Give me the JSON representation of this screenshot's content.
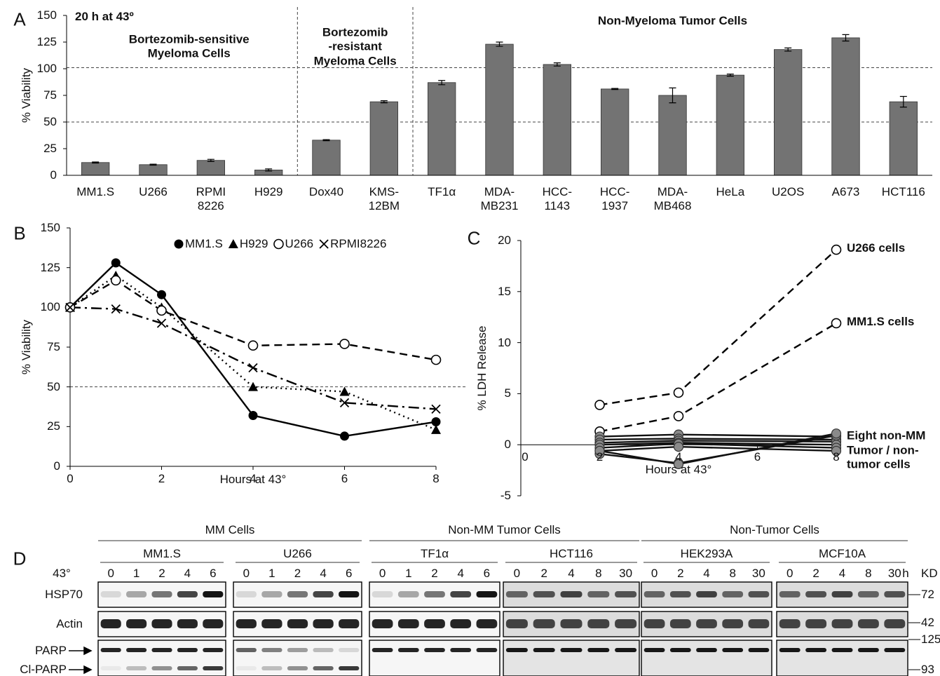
{
  "chart_data": [
    {
      "type": "bar",
      "panel_label": "A",
      "ylabel": "% Viability",
      "annotation": "20 h at 43º",
      "group_labels": [
        "Bortezomib-sensitive\nMyeloma Cells",
        "Bortezomib\n-resistant\nMyeloma Cells",
        "Non-Myeloma Tumor Cells"
      ],
      "categories": [
        "MM1.S",
        "U266",
        "RPMI\n8226",
        "H929",
        "Dox40",
        "KMS-\n12BM",
        "TF1α",
        "MDA-\nMB231",
        "HCC-\n1143",
        "HCC-\n1937",
        "MDA-\nMB468",
        "HeLa",
        "U2OS",
        "A673",
        "HCT116"
      ],
      "values": [
        12,
        10,
        14,
        5,
        33,
        69,
        87,
        123,
        104,
        81,
        75,
        94,
        118,
        129,
        69
      ],
      "errors": [
        0.5,
        0.5,
        1,
        1,
        0.5,
        1,
        2,
        2,
        1.5,
        0.5,
        7,
        1,
        1.5,
        3,
        5
      ],
      "color": "#737373",
      "ylim": [
        0,
        150
      ],
      "yticks": [
        0,
        25,
        50,
        75,
        100,
        125,
        150
      ],
      "reference_lines": [
        101,
        50
      ]
    },
    {
      "type": "line",
      "panel_label": "B",
      "ylabel": "% Viability",
      "xlabel": "Hours at 43°",
      "x": [
        0,
        1,
        2,
        4,
        6,
        8
      ],
      "series": [
        {
          "name": "MM1.S",
          "color": "#000000",
          "marker": "filled-circle",
          "dash": "solid",
          "values": [
            100,
            128,
            108,
            32,
            19,
            28
          ]
        },
        {
          "name": "H929",
          "color": "#000000",
          "marker": "triangle",
          "dash": "dotted",
          "values": [
            100,
            120,
            100,
            50,
            47,
            23
          ]
        },
        {
          "name": "U266",
          "color": "#000000",
          "marker": "open-circle",
          "dash": "dashed",
          "values": [
            100,
            117,
            98,
            76,
            77,
            67
          ]
        },
        {
          "name": "RPMI8226",
          "color": "#000000",
          "marker": "x",
          "dash": "dashdot",
          "values": [
            100,
            99,
            90,
            62,
            40,
            36
          ]
        }
      ],
      "xlim": [
        0,
        8
      ],
      "xticks": [
        0,
        2,
        4,
        6,
        8
      ],
      "ylim": [
        0,
        150
      ],
      "yticks": [
        0,
        25,
        50,
        75,
        100,
        125,
        150
      ],
      "reference_lines": [
        50
      ]
    },
    {
      "type": "line",
      "panel_label": "C",
      "ylabel": "% LDH Release",
      "xlabel": "Hours at 43°",
      "annotation": "Eight non-MM\nTumor / non-\ntumor cells",
      "x": [
        2,
        4,
        8
      ],
      "series": [
        {
          "name": "U266 cells",
          "color": "#000000",
          "marker": "open-circle",
          "dash": "dashed",
          "values": [
            3.9,
            5.1,
            19.1
          ]
        },
        {
          "name": "MM1.S cells",
          "color": "#000000",
          "marker": "open-circle",
          "dash": "dashed",
          "values": [
            1.3,
            2.8,
            11.9
          ]
        },
        {
          "color": "#888888",
          "marker": "gray-circle",
          "dash": "solid",
          "values": [
            0.8,
            1.0,
            0.8
          ]
        },
        {
          "color": "#888888",
          "marker": "gray-circle",
          "dash": "solid",
          "values": [
            0.5,
            0.6,
            0.5
          ]
        },
        {
          "color": "#888888",
          "marker": "gray-circle",
          "dash": "solid",
          "values": [
            0.2,
            0.4,
            0.3
          ]
        },
        {
          "color": "#888888",
          "marker": "gray-circle",
          "dash": "solid",
          "values": [
            0,
            0.2,
            0
          ]
        },
        {
          "color": "#888888",
          "marker": "gray-circle",
          "dash": "solid",
          "values": [
            -0.3,
            0.1,
            -0.3
          ]
        },
        {
          "color": "#888888",
          "marker": "gray-circle",
          "dash": "solid",
          "values": [
            -0.6,
            -0.2,
            -0.6
          ]
        },
        {
          "color": "#888888",
          "marker": "gray-circle",
          "dash": "solid",
          "values": [
            -0.9,
            -1.8,
            0.9
          ]
        },
        {
          "color": "#888888",
          "marker": "gray-circle",
          "dash": "solid",
          "values": [
            -0.6,
            -1.9,
            1.1
          ]
        }
      ],
      "xlim": [
        0,
        8
      ],
      "xticks": [
        0,
        2,
        4,
        6,
        8
      ],
      "ylim": [
        -5,
        20
      ],
      "yticks": [
        -5,
        0,
        5,
        10,
        15,
        20
      ]
    }
  ],
  "blot": {
    "panel_label": "D",
    "temp_label": "43°",
    "time_unit": "h",
    "kd_label": "KD",
    "groups": [
      {
        "label": "MM Cells",
        "lines": [
          {
            "label": "MM1.S",
            "times": [
              "0",
              "1",
              "2",
              "4",
              "6"
            ]
          },
          {
            "label": "U266",
            "times": [
              "0",
              "1",
              "2",
              "4",
              "6"
            ]
          }
        ]
      },
      {
        "label": "Non-MM Tumor Cells",
        "lines": [
          {
            "label": "TF1α",
            "times": [
              "0",
              "1",
              "2",
              "4",
              "6"
            ]
          },
          {
            "label": "HCT116",
            "times": [
              "0",
              "2",
              "4",
              "8",
              "30"
            ]
          }
        ]
      },
      {
        "label": "Non-Tumor Cells",
        "lines": [
          {
            "label": "HEK293A",
            "times": [
              "0",
              "2",
              "4",
              "8",
              "30"
            ]
          },
          {
            "label": "MCF10A",
            "times": [
              "0",
              "2",
              "4",
              "8",
              "30"
            ]
          }
        ]
      }
    ],
    "row_labels": [
      "HSP70",
      "Actin",
      "PARP",
      "Cl-PARP"
    ],
    "kd": [
      "72",
      "42",
      "125",
      "93"
    ]
  }
}
